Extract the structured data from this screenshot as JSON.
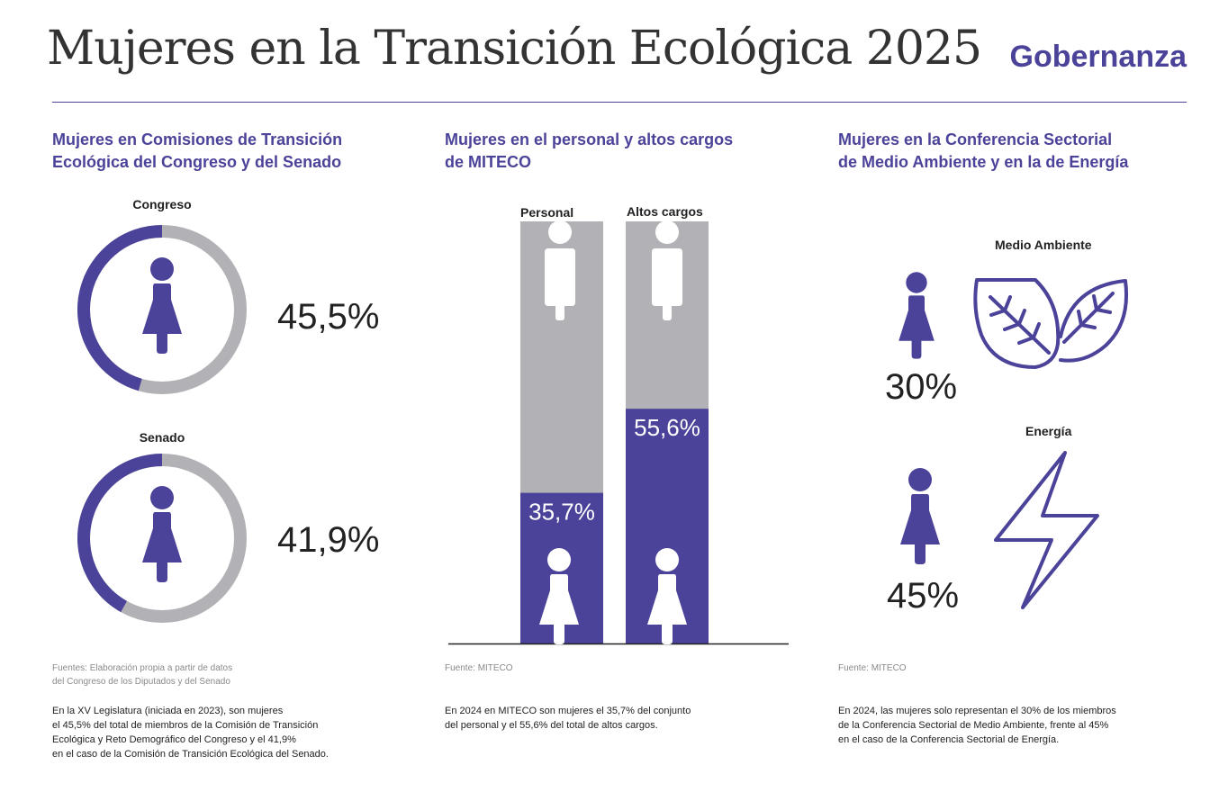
{
  "header": {
    "title": "Mujeres en la Transición Ecológica 2025",
    "section": "Gobernanza"
  },
  "colors": {
    "accent": "#4b4399",
    "grey": "#b2b2b6",
    "text": "#222222"
  },
  "col1": {
    "title_lines": [
      "Mujeres en Comisiones de Transición",
      "Ecológica del Congreso y del Senado"
    ],
    "source_lines": [
      "Fuentes: Elaboración propia a partir de datos",
      "del Congreso de los Diputados y del Senado"
    ],
    "note_lines": [
      "En la XV Legislatura (iniciada en 2023), son mujeres",
      "el 45,5% del total de miembros de la Comisión de Transición",
      "Ecológica y Reto Demográfico del Congreso y el 41,9%",
      "en el caso de la Comisión de Transición Ecológica del Senado."
    ]
  },
  "col2": {
    "title_lines": [
      "Mujeres en el personal y altos cargos",
      "de MITECO"
    ],
    "source": "Fuente: MITECO",
    "note_lines": [
      "En 2024 en MITECO son mujeres el 35,7% del conjunto",
      "del personal y el 55,6% del total de altos cargos."
    ]
  },
  "col3": {
    "title_lines": [
      "Mujeres en la Conferencia Sectorial",
      "de Medio Ambiente y en la de Energía"
    ],
    "source": "Fuente: MITECO",
    "note_lines": [
      "En 2024, las mujeres solo representan el 30% de los miembros",
      "de la Conferencia Sectorial de Medio Ambiente, frente al 45%",
      "en el caso de la Conferencia Sectorial de Energía."
    ]
  },
  "chart_data": [
    {
      "type": "pie",
      "title": "Mujeres en Comisiones de Transición Ecológica del Congreso y del Senado",
      "series": [
        {
          "name": "Congreso",
          "value": 45.5,
          "label": "45,5%"
        },
        {
          "name": "Senado",
          "value": 41.9,
          "label": "41,9%"
        }
      ]
    },
    {
      "type": "bar",
      "title": "Mujeres en el personal y altos cargos de MITECO",
      "categories": [
        "Personal",
        "Altos cargos"
      ],
      "values": [
        35.7,
        55.6
      ],
      "labels": [
        "35,7%",
        "55,6%"
      ],
      "ylim": [
        0,
        100
      ]
    },
    {
      "type": "table",
      "title": "Mujeres en la Conferencia Sectorial de Medio Ambiente y en la de Energía",
      "series": [
        {
          "name": "Medio Ambiente",
          "value": 30,
          "label": "30%",
          "icon": "leaves-icon"
        },
        {
          "name": "Energía",
          "value": 45,
          "label": "45%",
          "icon": "lightning-icon"
        }
      ]
    }
  ]
}
